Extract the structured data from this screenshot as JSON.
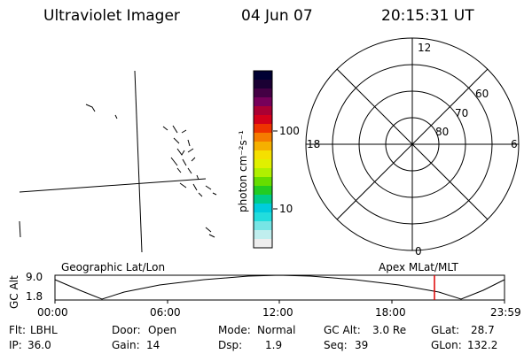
{
  "header": {
    "title": "Ultraviolet Imager",
    "date": "04 Jun 07",
    "time": "20:15:31 UT"
  },
  "colorbar": {
    "unit_label": "photon cm⁻²s⁻¹",
    "tick_labels": [
      "100",
      "10"
    ],
    "colors": [
      "#000033",
      "#1a0033",
      "#440044",
      "#77005a",
      "#aa0033",
      "#d4001a",
      "#ee3300",
      "#f57b00",
      "#f5b000",
      "#f5e000",
      "#e0f000",
      "#b0f000",
      "#66dd00",
      "#22cc22",
      "#00cc88",
      "#00ccdd",
      "#22dddd",
      "#77e5e5",
      "#c0eeee",
      "#eeeeee"
    ]
  },
  "polar": {
    "mlt_labels": {
      "top": "12",
      "left": "18",
      "right": "6",
      "bottom": "0"
    },
    "lat_labels": [
      "60",
      "70",
      "80"
    ]
  },
  "timeline": {
    "axis_label": "GC Alt",
    "y_ticks": [
      "9.0",
      "1.8"
    ],
    "left_caption": "Geographic Lat/Lon",
    "right_caption": "Apex MLat/MLT",
    "x_ticks": [
      "00:00",
      "06:00",
      "12:00",
      "18:00",
      "23:59"
    ],
    "marker_color": "#dd0000"
  },
  "info": {
    "row1": [
      {
        "label": "Flt:",
        "value": "LBHL"
      },
      {
        "label": "Door:",
        "value": "Open"
      },
      {
        "label": "Mode:",
        "value": "Normal"
      },
      {
        "label": "GC Alt:",
        "value": "3.0 Re"
      },
      {
        "label": "GLat:",
        "value": "28.7"
      }
    ],
    "row2": [
      {
        "label": "IP:",
        "value": "36.0"
      },
      {
        "label": "Gain:",
        "value": "14"
      },
      {
        "label": "Dsp:",
        "value": "1.9"
      },
      {
        "label": "Seq:",
        "value": "39"
      },
      {
        "label": "GLon:",
        "value": "132.2"
      }
    ]
  }
}
